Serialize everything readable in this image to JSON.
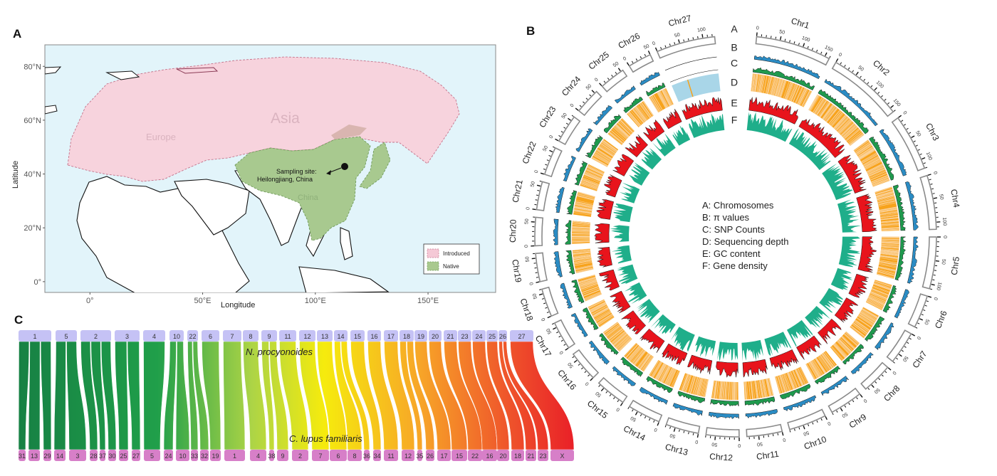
{
  "figure": {
    "panels": [
      "A",
      "B",
      "C"
    ]
  },
  "chart_data": [
    {
      "type": "map",
      "panel": "A",
      "xlabel": "Longitude",
      "ylabel": "Latitude",
      "xlim": [
        -20,
        180
      ],
      "ylim": [
        -4,
        88
      ],
      "x_ticks": [
        {
          "value": 0,
          "label": "0°"
        },
        {
          "value": 50,
          "label": "50°E"
        },
        {
          "value": 100,
          "label": "100°E"
        },
        {
          "value": 150,
          "label": "150°E"
        }
      ],
      "y_ticks": [
        {
          "value": 0,
          "label": "0°"
        },
        {
          "value": 20,
          "label": "20°N"
        },
        {
          "value": 40,
          "label": "40°N"
        },
        {
          "value": 60,
          "label": "60°N"
        },
        {
          "value": 80,
          "label": "80°N"
        }
      ],
      "region_labels": [
        "Europe",
        "Asia",
        "China"
      ],
      "annotation": {
        "text_line1": "Sampling site:",
        "text_line2": "Heilongjiang, China",
        "lon": 128,
        "lat": 45.5
      },
      "legend": {
        "position": "bottom-right",
        "entries": [
          {
            "label": "Introduced",
            "color": "#f5c9d6"
          },
          {
            "label": "Native",
            "color": "#a9c98e"
          }
        ]
      },
      "colors": {
        "ocean": "#e2f4fa",
        "introduced": "#f7d3dd",
        "native": "#a8c98f",
        "land": "#ffffff"
      }
    },
    {
      "type": "circos",
      "panel": "B",
      "chromosomes": [
        {
          "name": "Chr1",
          "length": 160
        },
        {
          "name": "Chr2",
          "length": 160
        },
        {
          "name": "Chr3",
          "length": 120
        },
        {
          "name": "Chr4",
          "length": 115
        },
        {
          "name": "Chr5",
          "length": 110
        },
        {
          "name": "Chr6",
          "length": 70
        },
        {
          "name": "Chr7",
          "length": 70
        },
        {
          "name": "Chr8",
          "length": 65
        },
        {
          "name": "Chr9",
          "length": 70
        },
        {
          "name": "Chr10",
          "length": 80
        },
        {
          "name": "Chr11",
          "length": 75
        },
        {
          "name": "Chr12",
          "length": 70
        },
        {
          "name": "Chr13",
          "length": 70
        },
        {
          "name": "Chr14",
          "length": 70
        },
        {
          "name": "Chr15",
          "length": 65
        },
        {
          "name": "Chr16",
          "length": 65
        },
        {
          "name": "Chr17",
          "length": 60
        },
        {
          "name": "Chr18",
          "length": 60
        },
        {
          "name": "Chr19",
          "length": 60
        },
        {
          "name": "Chr20",
          "length": 60
        },
        {
          "name": "Chr21",
          "length": 60
        },
        {
          "name": "Chr22",
          "length": 60
        },
        {
          "name": "Chr23",
          "length": 60
        },
        {
          "name": "Chr24",
          "length": 55
        },
        {
          "name": "Chr25",
          "length": 55
        },
        {
          "name": "Chr26",
          "length": 50
        },
        {
          "name": "Chr27",
          "length": 125
        }
      ],
      "tick_interval": 10,
      "tick_label_interval": 50,
      "tracks": [
        {
          "id": "A",
          "label": "A",
          "name": "Chromosomes",
          "color": "#888888"
        },
        {
          "id": "B",
          "label": "B",
          "name": "π values",
          "color": "#2b8cc4"
        },
        {
          "id": "C",
          "label": "C",
          "name": "SNP Counts",
          "color": "#1f9a4e"
        },
        {
          "id": "D",
          "label": "D",
          "name": "Sequencing depth",
          "color": "#f7a31c"
        },
        {
          "id": "E",
          "label": "E",
          "name": "GC content",
          "color": "#e8141c"
        },
        {
          "id": "F",
          "label": "F",
          "name": "Gene density",
          "color": "#1fae8a"
        }
      ],
      "legend": [
        "A: Chromosomes",
        "B: π values",
        "C: SNP Counts",
        "D: Sequencing depth",
        "E: GC content",
        "F: Gene density"
      ],
      "highlight": {
        "chromosome": "Chr27",
        "track": "D",
        "color": "#a9d6e8"
      }
    },
    {
      "type": "synteny",
      "panel": "C",
      "top_species": "N. procyonoides",
      "bottom_species": "C. lupus familiaris",
      "top_chromosomes": [
        "1",
        "5",
        "2",
        "3",
        "4",
        "10",
        "22",
        "6",
        "7",
        "8",
        "9",
        "11",
        "12",
        "13",
        "14",
        "15",
        "16",
        "17",
        "18",
        "19",
        "20",
        "21",
        "23",
        "24",
        "25",
        "26",
        "27"
      ],
      "bottom_chromosomes": [
        "31",
        "13",
        "29",
        "14",
        "3",
        "28",
        "37",
        "30",
        "25",
        "27",
        "5",
        "24",
        "10",
        "33",
        "32",
        "19",
        "1",
        "4",
        "38",
        "9",
        "2",
        "7",
        "6",
        "8",
        "36",
        "34",
        "11",
        "12",
        "35",
        "26",
        "17",
        "15",
        "22",
        "16",
        "20",
        "18",
        "21",
        "23",
        "X"
      ],
      "links": [
        {
          "from": "1",
          "to": [
            "31",
            "13",
            "29"
          ]
        },
        {
          "from": "5",
          "to": [
            "14",
            "3"
          ]
        },
        {
          "from": "2",
          "to": [
            "28",
            "37",
            "30"
          ]
        },
        {
          "from": "3",
          "to": [
            "25",
            "27"
          ]
        },
        {
          "from": "4",
          "to": [
            "5"
          ]
        },
        {
          "from": "10",
          "to": [
            "24",
            "10"
          ]
        },
        {
          "from": "22",
          "to": [
            "33",
            "32"
          ]
        },
        {
          "from": "6",
          "to": [
            "19"
          ]
        },
        {
          "from": "7",
          "to": [
            "1"
          ]
        },
        {
          "from": "8",
          "to": [
            "4"
          ]
        },
        {
          "from": "9",
          "to": [
            "38",
            "9"
          ]
        },
        {
          "from": "11",
          "to": [
            "2"
          ]
        },
        {
          "from": "12",
          "to": [
            "7"
          ]
        },
        {
          "from": "13",
          "to": [
            "6"
          ]
        },
        {
          "from": "14",
          "to": [
            "8",
            "36"
          ]
        },
        {
          "from": "15",
          "to": [
            "34"
          ]
        },
        {
          "from": "16",
          "to": [
            "11"
          ]
        },
        {
          "from": "17",
          "to": [
            "12"
          ]
        },
        {
          "from": "18",
          "to": [
            "35",
            "26"
          ]
        },
        {
          "from": "19",
          "to": [
            "17"
          ]
        },
        {
          "from": "20",
          "to": [
            "15"
          ]
        },
        {
          "from": "21",
          "to": [
            "22"
          ]
        },
        {
          "from": "23",
          "to": [
            "16"
          ]
        },
        {
          "from": "24",
          "to": [
            "20"
          ]
        },
        {
          "from": "25",
          "to": [
            "18"
          ]
        },
        {
          "from": "26",
          "to": [
            "21",
            "23"
          ]
        },
        {
          "from": "27",
          "to": [
            "X"
          ]
        }
      ],
      "colors": {
        "top_box": "#c5c2f5",
        "bottom_box": "#d77fc8",
        "gradient_start": "#0a7a3a",
        "gradient_mid": "#f5ea00",
        "gradient_end": "#e8141c"
      }
    }
  ]
}
